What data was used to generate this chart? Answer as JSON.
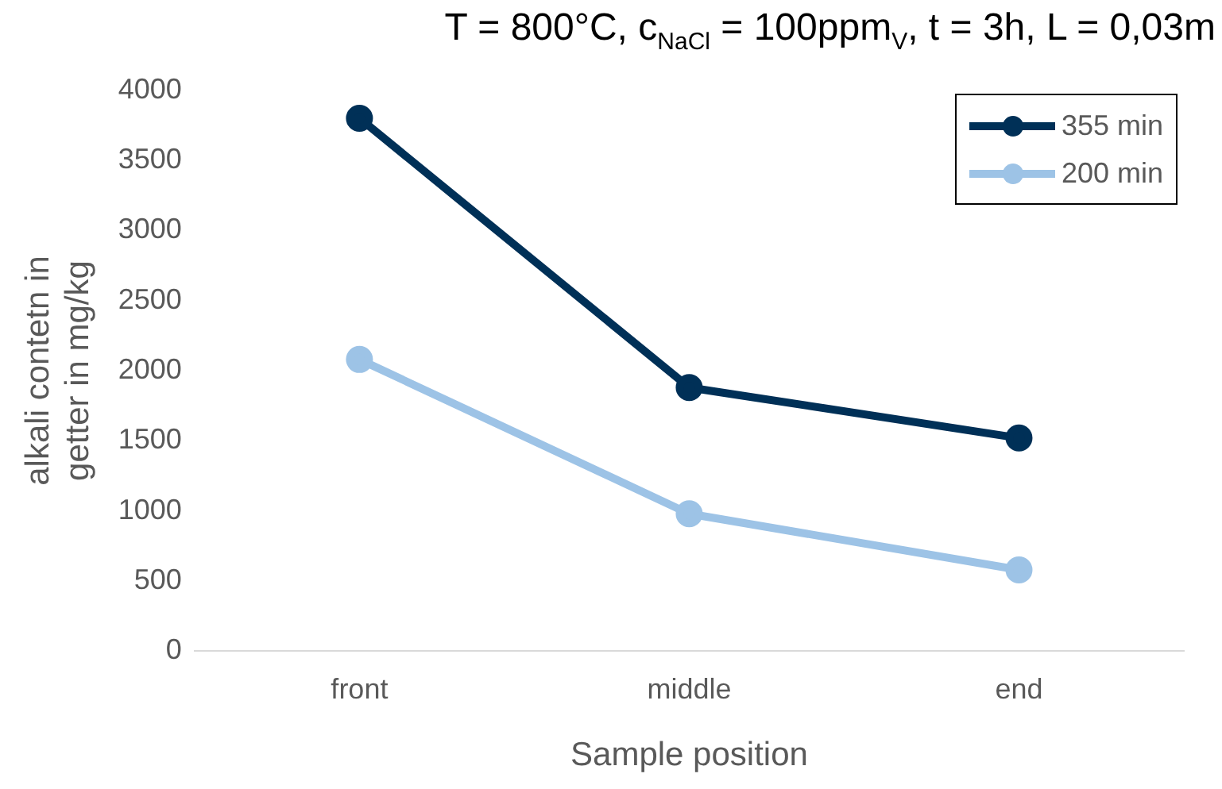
{
  "chart_data": {
    "type": "line",
    "title": "T = 800°C, c$_{NaCl}$ = 100ppm$_{V}$, t = 3h, L = 0,03m",
    "xlabel": "Sample position",
    "ylabel": "alkali contetn in getter in mg/kg",
    "categories": [
      "front",
      "middle",
      "end"
    ],
    "series": [
      {
        "name": "355 min",
        "color": "#003057",
        "values": [
          3800,
          1880,
          1520
        ]
      },
      {
        "name": "200 min",
        "color": "#9dc3e6",
        "values": [
          2080,
          980,
          580
        ]
      }
    ],
    "ylim": [
      0,
      4000
    ],
    "yticks": [
      0,
      500,
      1000,
      1500,
      2000,
      2500,
      3000,
      3500,
      4000
    ],
    "grid": false,
    "legend": "top right",
    "marker": "circle",
    "line_style": "solid"
  }
}
